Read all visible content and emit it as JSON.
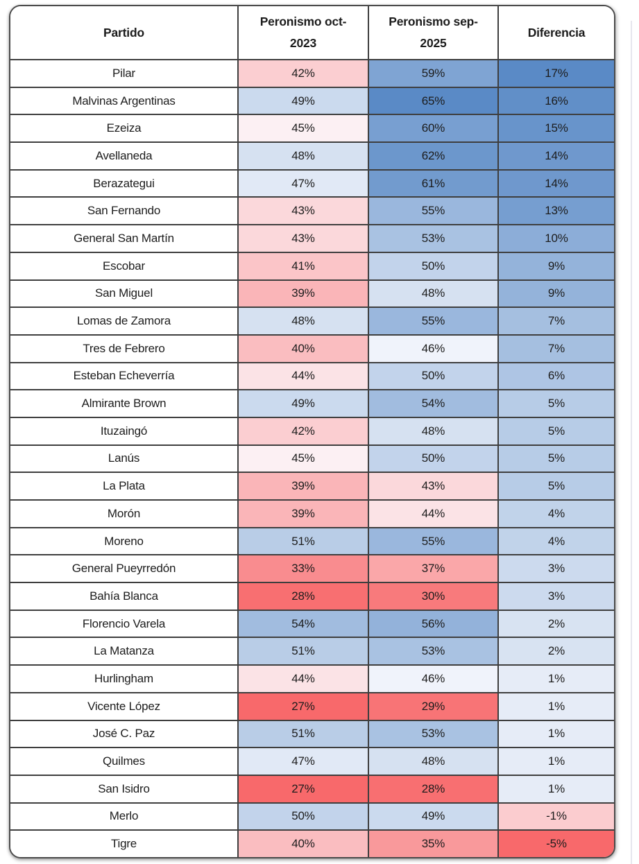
{
  "chart_data": {
    "type": "table",
    "columns": [
      {
        "id": "partido",
        "label": "Partido"
      },
      {
        "id": "oct2023",
        "lines": [
          "Peronismo oct-",
          "2023"
        ]
      },
      {
        "id": "sep2025",
        "lines": [
          "Peronismo sep-",
          "2025"
        ]
      },
      {
        "id": "diferencia",
        "label": "Diferencia"
      }
    ],
    "value_suffix": "%",
    "rows": [
      {
        "partido": "Pilar",
        "oct2023": 42,
        "sep2025": 59,
        "diferencia": 17
      },
      {
        "partido": "Malvinas Argentinas",
        "oct2023": 49,
        "sep2025": 65,
        "diferencia": 16
      },
      {
        "partido": "Ezeiza",
        "oct2023": 45,
        "sep2025": 60,
        "diferencia": 15
      },
      {
        "partido": "Avellaneda",
        "oct2023": 48,
        "sep2025": 62,
        "diferencia": 14
      },
      {
        "partido": "Berazategui",
        "oct2023": 47,
        "sep2025": 61,
        "diferencia": 14
      },
      {
        "partido": "San Fernando",
        "oct2023": 43,
        "sep2025": 55,
        "diferencia": 13
      },
      {
        "partido": "General San Martín",
        "oct2023": 43,
        "sep2025": 53,
        "diferencia": 10
      },
      {
        "partido": "Escobar",
        "oct2023": 41,
        "sep2025": 50,
        "diferencia": 9
      },
      {
        "partido": "San Miguel",
        "oct2023": 39,
        "sep2025": 48,
        "diferencia": 9
      },
      {
        "partido": "Lomas de Zamora",
        "oct2023": 48,
        "sep2025": 55,
        "diferencia": 7
      },
      {
        "partido": "Tres de Febrero",
        "oct2023": 40,
        "sep2025": 46,
        "diferencia": 7
      },
      {
        "partido": "Esteban Echeverría",
        "oct2023": 44,
        "sep2025": 50,
        "diferencia": 6
      },
      {
        "partido": "Almirante Brown",
        "oct2023": 49,
        "sep2025": 54,
        "diferencia": 5
      },
      {
        "partido": "Ituzaingó",
        "oct2023": 42,
        "sep2025": 48,
        "diferencia": 5
      },
      {
        "partido": "Lanús",
        "oct2023": 45,
        "sep2025": 50,
        "diferencia": 5
      },
      {
        "partido": "La Plata",
        "oct2023": 39,
        "sep2025": 43,
        "diferencia": 5
      },
      {
        "partido": "Morón",
        "oct2023": 39,
        "sep2025": 44,
        "diferencia": 4
      },
      {
        "partido": "Moreno",
        "oct2023": 51,
        "sep2025": 55,
        "diferencia": 4
      },
      {
        "partido": "General Pueyrredón",
        "oct2023": 33,
        "sep2025": 37,
        "diferencia": 3
      },
      {
        "partido": "Bahía Blanca",
        "oct2023": 28,
        "sep2025": 30,
        "diferencia": 3
      },
      {
        "partido": "Florencio Varela",
        "oct2023": 54,
        "sep2025": 56,
        "diferencia": 2
      },
      {
        "partido": "La Matanza",
        "oct2023": 51,
        "sep2025": 53,
        "diferencia": 2
      },
      {
        "partido": "Hurlingham",
        "oct2023": 44,
        "sep2025": 46,
        "diferencia": 1
      },
      {
        "partido": "Vicente López",
        "oct2023": 27,
        "sep2025": 29,
        "diferencia": 1
      },
      {
        "partido": "José C. Paz",
        "oct2023": 51,
        "sep2025": 53,
        "diferencia": 1
      },
      {
        "partido": "Quilmes",
        "oct2023": 47,
        "sep2025": 48,
        "diferencia": 1
      },
      {
        "partido": "San Isidro",
        "oct2023": 27,
        "sep2025": 28,
        "diferencia": 1
      },
      {
        "partido": "Merlo",
        "oct2023": 50,
        "sep2025": 49,
        "diferencia": -1
      },
      {
        "partido": "Tigre",
        "oct2023": 40,
        "sep2025": 35,
        "diferencia": -5
      }
    ],
    "conditional_formatting": {
      "style": "3-color-scale",
      "red": "#F8696B",
      "white": "#FCFCFF",
      "blue": "#5A8AC6",
      "gamma": 0.7,
      "percent_domain": {
        "min": 27,
        "mid": 45.5,
        "max": 65
      },
      "difference_domain": {
        "min": -5,
        "mid": 0,
        "max": 17
      }
    },
    "layout": {
      "grid": "dark 2px rules between all rows and columns",
      "outer_border": "rounded dark frame with soft shadow"
    }
  }
}
